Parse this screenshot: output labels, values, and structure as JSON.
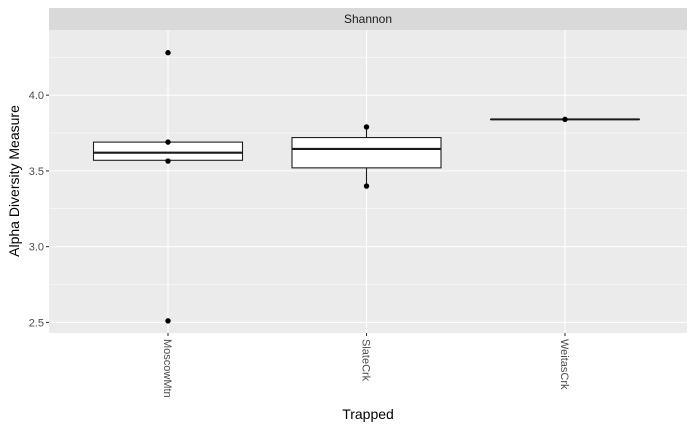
{
  "chart_data": {
    "type": "box",
    "facet_label": "Shannon",
    "xlabel": "Trapped",
    "ylabel": "Alpha Diversity Measure",
    "categories": [
      "MoscowMtn",
      "SlateCrk",
      "WeitasCrk"
    ],
    "ylim": [
      2.43,
      4.43
    ],
    "yticks": [
      2.5,
      3.0,
      3.5,
      4.0
    ],
    "ytick_labels": [
      "2.5",
      "3.0",
      "3.5",
      "4.0"
    ],
    "grid": true,
    "boxes": [
      {
        "category": "MoscowMtn",
        "q1": 3.57,
        "median": 3.62,
        "q3": 3.69,
        "whisker_low": 3.57,
        "whisker_high": 3.69,
        "points": [
          4.28,
          3.69,
          3.565,
          2.51
        ]
      },
      {
        "category": "SlateCrk",
        "q1": 3.52,
        "median": 3.645,
        "q3": 3.72,
        "whisker_low": 3.4,
        "whisker_high": 3.79,
        "points": [
          3.79,
          3.4
        ]
      },
      {
        "category": "WeitasCrk",
        "q1": 3.84,
        "median": 3.84,
        "q3": 3.84,
        "whisker_low": 3.84,
        "whisker_high": 3.84,
        "points": [
          3.84
        ]
      }
    ]
  }
}
